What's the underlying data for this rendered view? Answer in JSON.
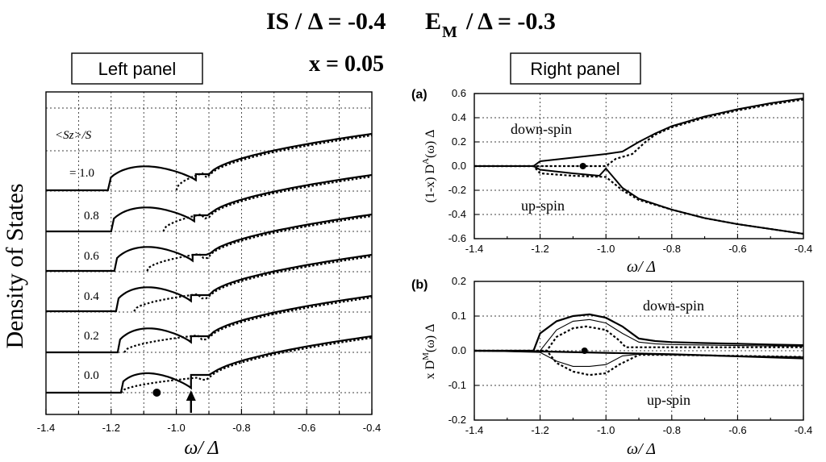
{
  "header": {
    "line1_a": "IS / Δ = -0.4",
    "line1_b": "E",
    "line1_b_sub": "M",
    "line1_c": " / Δ = -0.3",
    "line2": "x = 0.05"
  },
  "left_panel": {
    "title": "Left panel",
    "ylabel": "Density of  States",
    "xlabel": "ω/ Δ",
    "legend_header": "<Sz>/S",
    "level_labels": [
      "= 1.0",
      "0.8",
      "0.6",
      "0.4",
      "0.2",
      "0.0"
    ],
    "xticks": [
      "-1.4",
      "-1.2",
      "-1.0",
      "-0.8",
      "-0.6",
      "-0.4"
    ]
  },
  "right_panel": {
    "title": "Right panel",
    "a": {
      "label": "(a)",
      "ylabel": "(1-x) D",
      "ylabel_sup": "A",
      "ylabel_tail": "(ω) Δ",
      "xlabel": "ω/ Δ",
      "annot_top": "down-spin",
      "annot_bottom": "up-spin",
      "yticks": [
        "0.6",
        "0.4",
        "0.2",
        "0.0",
        "-0.2",
        "-0.4",
        "-0.6"
      ],
      "xticks": [
        "-1.4",
        "-1.2",
        "-1.0",
        "-0.8",
        "-0.6",
        "-0.4"
      ]
    },
    "b": {
      "label": "(b)",
      "ylabel": "x D",
      "ylabel_sup": "M",
      "ylabel_tail": "(ω) Δ",
      "xlabel": "ω/ Δ",
      "annot_top": "down-spin",
      "annot_bottom": "up-spin",
      "yticks": [
        "0.2",
        "0.1",
        "0.0",
        "-0.1",
        "-0.2"
      ],
      "xticks": [
        "-1.4",
        "-1.2",
        "-1.0",
        "-0.8",
        "-0.6",
        "-0.4"
      ]
    }
  },
  "chart_data": [
    {
      "type": "line",
      "title": "Left panel",
      "xlabel": "ω/ Δ",
      "ylabel": "Density of  States",
      "xlim": [
        -1.4,
        -0.4
      ],
      "series_note": "curves offset vertically for each <Sz>/S value; solid and dotted lines",
      "levels": [
        {
          "label": "= 1.0",
          "edge_solid": -1.21,
          "edge_dotted": -1.0,
          "dip": -0.94
        },
        {
          "label": "0.8",
          "edge_solid": -1.2,
          "edge_dotted": -1.04,
          "dip": -0.945
        },
        {
          "label": "0.6",
          "edge_solid": -1.19,
          "edge_dotted": -1.09,
          "dip": -0.95
        },
        {
          "label": "0.4",
          "edge_solid": -1.185,
          "edge_dotted": -1.13,
          "dip": -0.955
        },
        {
          "label": "0.2",
          "edge_solid": -1.18,
          "edge_dotted": -1.16,
          "dip": -0.955
        },
        {
          "label": "0.0",
          "edge_solid": -1.17,
          "edge_dotted": -1.17,
          "dip": -0.955
        }
      ],
      "markers": [
        {
          "type": "dot",
          "x": -1.06
        },
        {
          "type": "arrow",
          "x": -0.955
        }
      ]
    },
    {
      "type": "line",
      "title": "(a)",
      "xlabel": "ω/ Δ",
      "ylabel": "(1-x) D^A(ω) Δ",
      "xlim": [
        -1.4,
        -0.4
      ],
      "ylim": [
        -0.6,
        0.6
      ],
      "series": [
        {
          "name": "down-spin solid",
          "x": [
            -1.4,
            -1.22,
            -1.2,
            -1.1,
            -1.0,
            -0.95,
            -0.9,
            -0.85,
            -0.8,
            -0.7,
            -0.6,
            -0.5,
            -0.4
          ],
          "y": [
            0.0,
            0.0,
            0.04,
            0.07,
            0.1,
            0.12,
            0.2,
            0.27,
            0.33,
            0.41,
            0.47,
            0.52,
            0.56
          ]
        },
        {
          "name": "down-spin dotted",
          "x": [
            -1.4,
            -1.0,
            -0.97,
            -0.92,
            -0.88,
            -0.85,
            -0.8,
            -0.7,
            -0.6,
            -0.5,
            -0.4
          ],
          "y": [
            0.0,
            0.0,
            0.06,
            0.1,
            0.2,
            0.26,
            0.32,
            0.4,
            0.46,
            0.51,
            0.55
          ]
        },
        {
          "name": "up-spin solid",
          "x": [
            -1.4,
            -1.22,
            -1.2,
            -1.1,
            -1.02,
            -1.0,
            -0.95,
            -0.9,
            -0.8,
            -0.7,
            -0.6,
            -0.5,
            -0.4
          ],
          "y": [
            0.0,
            0.0,
            -0.03,
            -0.06,
            -0.08,
            -0.02,
            -0.18,
            -0.27,
            -0.36,
            -0.43,
            -0.48,
            -0.52,
            -0.56
          ]
        },
        {
          "name": "up-spin dotted",
          "x": [
            -1.4,
            -1.22,
            -1.2,
            -1.1,
            -1.0,
            -0.95,
            -0.9,
            -0.8,
            -0.7,
            -0.6,
            -0.5,
            -0.4
          ],
          "y": [
            0.0,
            0.0,
            -0.06,
            -0.08,
            -0.09,
            -0.2,
            -0.28,
            -0.36,
            -0.43,
            -0.48,
            -0.52,
            -0.56
          ]
        }
      ],
      "marker": {
        "x": -1.07,
        "y": 0.0
      }
    },
    {
      "type": "line",
      "title": "(b)",
      "xlabel": "ω/ Δ",
      "ylabel": "x D^M(ω) Δ",
      "xlim": [
        -1.4,
        -0.4
      ],
      "ylim": [
        -0.2,
        0.2
      ],
      "series": [
        {
          "name": "down-spin thick",
          "x": [
            -1.4,
            -1.22,
            -1.2,
            -1.15,
            -1.1,
            -1.05,
            -1.0,
            -0.95,
            -0.9,
            -0.85,
            -0.8,
            -0.7,
            -0.6,
            -0.5,
            -0.4
          ],
          "y": [
            0.0,
            0.0,
            0.05,
            0.085,
            0.1,
            0.105,
            0.095,
            0.07,
            0.035,
            0.028,
            0.025,
            0.022,
            0.02,
            0.018,
            0.016
          ]
        },
        {
          "name": "down-spin thin",
          "x": [
            -1.4,
            -1.2,
            -1.15,
            -1.1,
            -1.05,
            -1.0,
            -0.95,
            -0.9,
            -0.85,
            -0.8,
            -0.6,
            -0.4
          ],
          "y": [
            0.0,
            0.0,
            0.06,
            0.085,
            0.09,
            0.08,
            0.05,
            0.025,
            0.02,
            0.018,
            0.015,
            0.013
          ]
        },
        {
          "name": "down-spin dashed",
          "x": [
            -1.4,
            -1.18,
            -1.15,
            -1.1,
            -1.06,
            -1.0,
            -0.96,
            -0.94,
            -0.9,
            -0.8,
            -0.6,
            -0.4
          ],
          "y": [
            0.0,
            0.0,
            0.04,
            0.065,
            0.07,
            0.06,
            0.03,
            0.01,
            0.01,
            0.01,
            0.01,
            0.01
          ]
        },
        {
          "name": "up-spin thin",
          "x": [
            -1.4,
            -1.2,
            -1.15,
            -1.1,
            -1.05,
            -1.0,
            -0.95,
            -0.9,
            -0.8,
            -0.6,
            -0.4
          ],
          "y": [
            0.0,
            -0.005,
            -0.03,
            -0.045,
            -0.045,
            -0.04,
            -0.015,
            -0.01,
            -0.012,
            -0.015,
            -0.018
          ]
        },
        {
          "name": "up-spin dashed",
          "x": [
            -1.4,
            -1.18,
            -1.15,
            -1.1,
            -1.05,
            -1.0,
            -0.96,
            -0.9,
            -0.8,
            -0.6,
            -0.4
          ],
          "y": [
            0.0,
            0.0,
            -0.035,
            -0.06,
            -0.07,
            -0.065,
            -0.04,
            -0.012,
            -0.012,
            -0.015,
            -0.018
          ]
        },
        {
          "name": "up-spin thick",
          "x": [
            -1.4,
            -1.2,
            -1.0,
            -0.8,
            -0.6,
            -0.4
          ],
          "y": [
            0.0,
            -0.002,
            -0.006,
            -0.01,
            -0.016,
            -0.022
          ]
        }
      ],
      "marker": {
        "x": -1.065,
        "y": 0.0
      }
    }
  ]
}
